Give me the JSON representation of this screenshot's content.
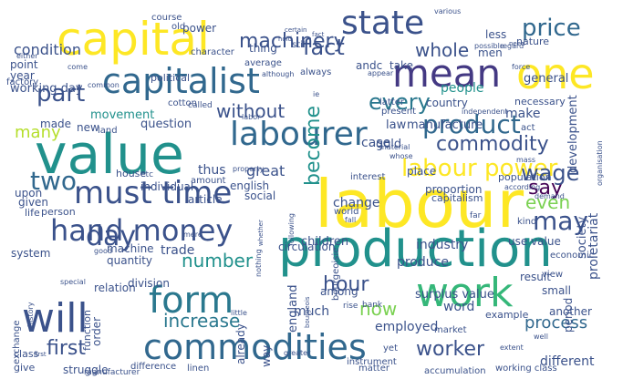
{
  "words": [
    {
      "text": "labour",
      "color": "#fde725"
    },
    {
      "text": "value",
      "color": "#21918c"
    },
    {
      "text": "production",
      "color": "#21918c"
    },
    {
      "text": "capital",
      "color": "#fde725"
    },
    {
      "text": "capitalist",
      "color": "#31688e"
    },
    {
      "text": "one",
      "color": "#fde725"
    },
    {
      "text": "mean",
      "color": "#443983"
    },
    {
      "text": "labourer",
      "color": "#31688e"
    },
    {
      "text": "state",
      "color": "#3b528b"
    },
    {
      "text": "work",
      "color": "#35b779"
    },
    {
      "text": "commodities",
      "color": "#31688e"
    },
    {
      "text": "form",
      "color": "#2a788e"
    },
    {
      "text": "will",
      "color": "#3b528b"
    },
    {
      "text": "must time",
      "color": "#3b528b"
    },
    {
      "text": "hand money",
      "color": "#3b528b"
    },
    {
      "text": "labour power",
      "color": "#fde725"
    },
    {
      "text": "product",
      "color": "#31688e"
    },
    {
      "text": "commodity",
      "color": "#3b528b"
    },
    {
      "text": "part",
      "color": "#3b528b"
    },
    {
      "text": "fact",
      "color": "#3b528b"
    },
    {
      "text": "price",
      "color": "#31688e"
    },
    {
      "text": "machinery",
      "color": "#3b528b"
    },
    {
      "text": "may",
      "color": "#3b528b"
    },
    {
      "text": "say",
      "color": "#440154"
    },
    {
      "text": "wage",
      "color": "#3b528b"
    },
    {
      "text": "even",
      "color": "#7ad151"
    },
    {
      "text": "become",
      "color": "#21918c"
    },
    {
      "text": "every",
      "color": "#2a788e"
    },
    {
      "text": "whole",
      "color": "#3b528b"
    },
    {
      "text": "without",
      "color": "#3b528b"
    },
    {
      "text": "two",
      "color": "#31688e"
    },
    {
      "text": "day",
      "color": "#3b528b"
    },
    {
      "text": "number",
      "color": "#21918c"
    },
    {
      "text": "hour",
      "color": "#3b528b"
    },
    {
      "text": "now",
      "color": "#7ad151"
    },
    {
      "text": "increase",
      "color": "#2a788e"
    },
    {
      "text": "first",
      "color": "#3b528b"
    },
    {
      "text": "worker",
      "color": "#3b528b"
    },
    {
      "text": "process",
      "color": "#31688e"
    },
    {
      "text": "condition",
      "color": "#3b528b"
    },
    {
      "text": "power",
      "color": "#3b528b"
    },
    {
      "text": "men",
      "color": "#3b528b"
    },
    {
      "text": "less",
      "color": "#3b528b"
    },
    {
      "text": "general",
      "color": "#3b528b"
    },
    {
      "text": "year",
      "color": "#3b528b"
    },
    {
      "text": "thing",
      "color": "#3b528b"
    },
    {
      "text": "take",
      "color": "#3b528b"
    },
    {
      "text": "working day",
      "color": "#3b528b"
    },
    {
      "text": "movement",
      "color": "#21918c"
    },
    {
      "text": "question",
      "color": "#3b528b"
    },
    {
      "text": "made",
      "color": "#3b528b"
    },
    {
      "text": "new",
      "color": "#3b528b"
    },
    {
      "text": "many",
      "color": "#b5de2b"
    },
    {
      "text": "law",
      "color": "#3b528b"
    },
    {
      "text": "manufacture",
      "color": "#3b528b"
    },
    {
      "text": "people",
      "color": "#21918c"
    },
    {
      "text": "make",
      "color": "#3b528b"
    },
    {
      "text": "country",
      "color": "#3b528b"
    },
    {
      "text": "andc",
      "color": "#3b528b"
    },
    {
      "text": "great",
      "color": "#3b528b"
    },
    {
      "text": "thus",
      "color": "#3b528b"
    },
    {
      "text": "change",
      "color": "#3b528b"
    },
    {
      "text": "case",
      "color": "#3b528b"
    },
    {
      "text": "gold",
      "color": "#3b528b"
    },
    {
      "text": "given",
      "color": "#3b528b"
    },
    {
      "text": "children",
      "color": "#3b528b"
    },
    {
      "text": "industry",
      "color": "#3b528b"
    },
    {
      "text": "use value",
      "color": "#3b528b"
    },
    {
      "text": "circulation",
      "color": "#3b528b"
    },
    {
      "text": "produce",
      "color": "#3b528b"
    },
    {
      "text": "system",
      "color": "#3b528b"
    },
    {
      "text": "machine",
      "color": "#3b528b"
    },
    {
      "text": "trade",
      "color": "#3b528b"
    },
    {
      "text": "quantity",
      "color": "#3b528b"
    },
    {
      "text": "relation",
      "color": "#3b528b"
    },
    {
      "text": "surplus value",
      "color": "#3b528b"
    },
    {
      "text": "among",
      "color": "#3b528b"
    },
    {
      "text": "much",
      "color": "#3b528b"
    },
    {
      "text": "word",
      "color": "#3b528b"
    },
    {
      "text": "small",
      "color": "#3b528b"
    },
    {
      "text": "result",
      "color": "#3b528b"
    },
    {
      "text": "another",
      "color": "#3b528b"
    },
    {
      "text": "employed",
      "color": "#3b528b"
    },
    {
      "text": "struggle",
      "color": "#3b528b"
    },
    {
      "text": "class",
      "color": "#3b528b"
    },
    {
      "text": "give",
      "color": "#3b528b"
    },
    {
      "text": "accumulation",
      "color": "#3b528b"
    },
    {
      "text": "different",
      "color": "#3b528b"
    },
    {
      "text": "division",
      "color": "#3b528b"
    },
    {
      "text": "upon",
      "color": "#3b528b"
    },
    {
      "text": "point",
      "color": "#3b528b"
    },
    {
      "text": "factory",
      "color": "#3b528b"
    },
    {
      "text": "land",
      "color": "#3b528b"
    },
    {
      "text": "english",
      "color": "#3b528b"
    },
    {
      "text": "social",
      "color": "#3b528b"
    },
    {
      "text": "house",
      "color": "#3b528b"
    },
    {
      "text": "amount",
      "color": "#3b528b"
    },
    {
      "text": "individual",
      "color": "#3b528b"
    },
    {
      "text": "article",
      "color": "#3b528b"
    },
    {
      "text": "capitalism",
      "color": "#3b528b"
    },
    {
      "text": "population",
      "color": "#3b528b"
    },
    {
      "text": "proportion",
      "color": "#3b528b"
    },
    {
      "text": "place",
      "color": "#3b528b"
    },
    {
      "text": "necessary",
      "color": "#3b528b"
    },
    {
      "text": "development",
      "color": "#3b528b"
    },
    {
      "text": "society",
      "color": "#3b528b"
    },
    {
      "text": "period",
      "color": "#3b528b"
    },
    {
      "text": "proletariat",
      "color": "#3b528b"
    },
    {
      "text": "england",
      "color": "#3b528b"
    },
    {
      "text": "way",
      "color": "#3b528b"
    },
    {
      "text": "order",
      "color": "#3b528b"
    },
    {
      "text": "function",
      "color": "#3b528b"
    },
    {
      "text": "exchange",
      "color": "#3b528b"
    },
    {
      "text": "course",
      "color": "#3b528b"
    },
    {
      "text": "old",
      "color": "#3b528b"
    },
    {
      "text": "still",
      "color": "#3b528b"
    },
    {
      "text": "nature",
      "color": "#3b528b"
    },
    {
      "text": "latter",
      "color": "#3b528b"
    },
    {
      "text": "present",
      "color": "#3b528b"
    },
    {
      "text": "political",
      "color": "#3b528b"
    },
    {
      "text": "average",
      "color": "#3b528b"
    },
    {
      "text": "always",
      "color": "#3b528b"
    },
    {
      "text": "cotton",
      "color": "#3b528b"
    },
    {
      "text": "interest",
      "color": "#3b528b"
    },
    {
      "text": "world",
      "color": "#3b528b"
    },
    {
      "text": "life",
      "color": "#3b528b"
    },
    {
      "text": "person",
      "color": "#3b528b"
    },
    {
      "text": "market",
      "color": "#3b528b"
    },
    {
      "text": "example",
      "color": "#3b528b"
    },
    {
      "text": "already",
      "color": "#3b528b"
    },
    {
      "text": "instrument",
      "color": "#3b528b"
    },
    {
      "text": "difference",
      "color": "#3b528b"
    },
    {
      "text": "linen",
      "color": "#3b528b"
    },
    {
      "text": "manufacturer",
      "color": "#3b528b"
    },
    {
      "text": "working class",
      "color": "#3b528b"
    },
    {
      "text": "act",
      "color": "#3b528b"
    },
    {
      "text": "economic",
      "color": "#3b528b"
    },
    {
      "text": "kind",
      "color": "#3b528b"
    },
    {
      "text": "view",
      "color": "#3b528b"
    },
    {
      "text": "rise",
      "color": "#3b528b"
    },
    {
      "text": "bank",
      "color": "#3b528b"
    },
    {
      "text": "yet",
      "color": "#3b528b"
    },
    {
      "text": "matter",
      "color": "#3b528b"
    },
    {
      "text": "bourgeoisie",
      "color": "#3b528b"
    },
    {
      "text": "character",
      "color": "#3b528b"
    },
    {
      "text": "various",
      "color": "#3b528b"
    },
    {
      "text": "possible",
      "color": "#3b528b"
    },
    {
      "text": "regard",
      "color": "#3b528b"
    },
    {
      "text": "force",
      "color": "#3b528b"
    },
    {
      "text": "although",
      "color": "#3b528b"
    },
    {
      "text": "appear",
      "color": "#3b528b"
    },
    {
      "text": "come",
      "color": "#3b528b"
    },
    {
      "text": "common",
      "color": "#3b528b"
    },
    {
      "text": "called",
      "color": "#3b528b"
    },
    {
      "text": "material",
      "color": "#3b528b"
    },
    {
      "text": "whose",
      "color": "#3b528b"
    },
    {
      "text": "according",
      "color": "#3b528b"
    },
    {
      "text": "demand",
      "color": "#3b528b"
    },
    {
      "text": "independent",
      "color": "#3b528b"
    },
    {
      "text": "organisation",
      "color": "#3b528b"
    },
    {
      "text": "labor",
      "color": "#3b528b"
    },
    {
      "text": "etc",
      "color": "#3b528b"
    },
    {
      "text": "mere",
      "color": "#3b528b"
    },
    {
      "text": "property",
      "color": "#3b528b"
    },
    {
      "text": "either",
      "color": "#3b528b"
    },
    {
      "text": "special",
      "color": "#3b528b"
    },
    {
      "text": "greater",
      "color": "#3b528b"
    },
    {
      "text": "little",
      "color": "#3b528b"
    },
    {
      "text": "extent",
      "color": "#3b528b"
    },
    {
      "text": "history",
      "color": "#3b528b"
    },
    {
      "text": "good",
      "color": "#3b528b"
    },
    {
      "text": "fall",
      "color": "#3b528b"
    },
    {
      "text": "well",
      "color": "#3b528b"
    },
    {
      "text": "ie",
      "color": "#3b528b"
    },
    {
      "text": "mass",
      "color": "#3b528b"
    },
    {
      "text": "far",
      "color": "#3b528b"
    },
    {
      "text": "first",
      "color": "#3b528b"
    },
    {
      "text": "following",
      "color": "#3b528b"
    },
    {
      "text": "nothing",
      "color": "#3b528b"
    },
    {
      "text": "whether",
      "color": "#3b528b"
    },
    {
      "text": "bourgeois",
      "color": "#3b528b"
    },
    {
      "text": "certain",
      "color": "#3b528b"
    },
    {
      "text": "hold",
      "color": "#3b528b"
    },
    {
      "text": "fact",
      "color": "#3b528b"
    },
    {
      "text": "need",
      "color": "#3b528b"
    }
  ]
}
